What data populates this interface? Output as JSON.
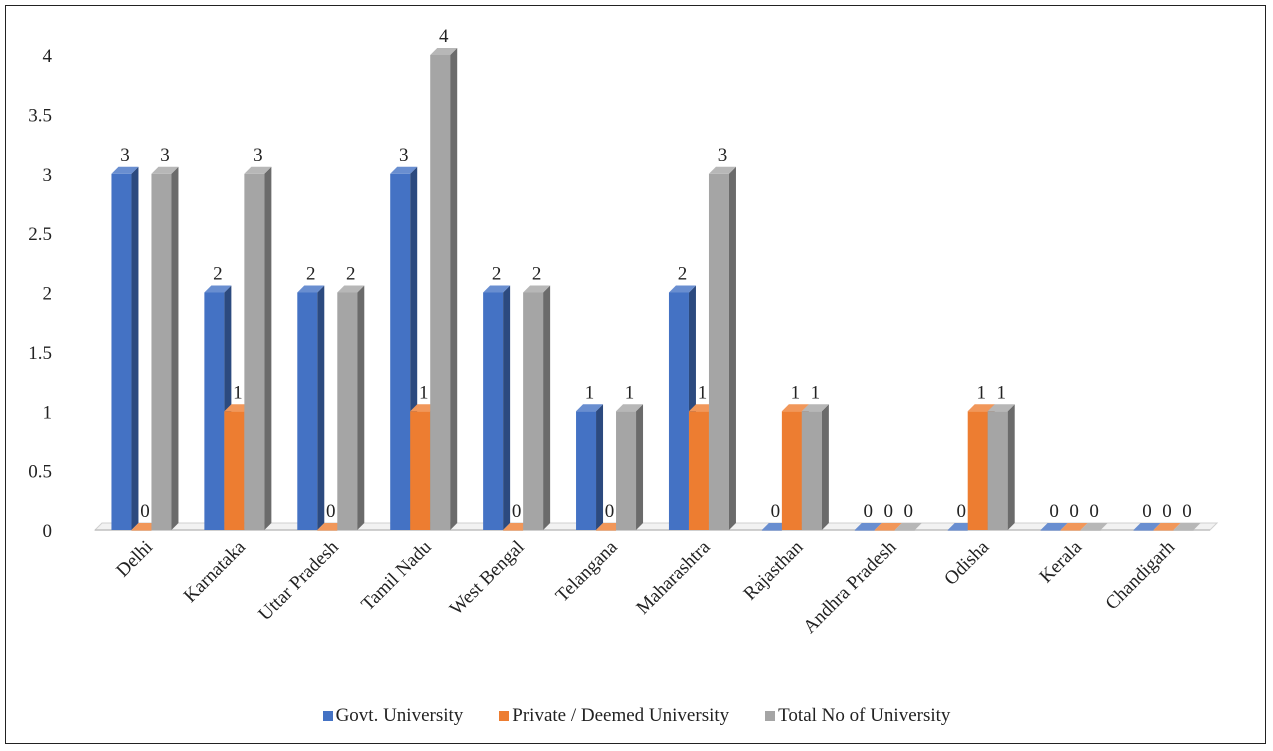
{
  "chart_data": {
    "type": "bar",
    "title": "",
    "xlabel": "",
    "ylabel": "",
    "ylim": [
      0,
      4
    ],
    "yticks": [
      "0",
      "0.5",
      "1",
      "1.5",
      "2",
      "2.5",
      "3",
      "3.5",
      "4"
    ],
    "grid": false,
    "legend_position": "bottom",
    "categories": [
      "Delhi",
      "Karnataka",
      "Uttar Pradesh",
      "Tamil Nadu",
      "West Bengal",
      "Telangana",
      "Maharashtra",
      "Rajasthan",
      "Andhra Pradesh",
      "Odisha",
      "Kerala",
      "Chandigarh"
    ],
    "series": [
      {
        "name": "Govt. University",
        "color": "#4472C4",
        "values": [
          3,
          2,
          2,
          3,
          2,
          1,
          2,
          0,
          0,
          0,
          0,
          0
        ]
      },
      {
        "name": "Private / Deemed University",
        "color": "#ED7D31",
        "values": [
          0,
          1,
          0,
          1,
          0,
          0,
          1,
          1,
          0,
          1,
          0,
          0
        ]
      },
      {
        "name": "Total No of University",
        "color": "#A5A5A5",
        "values": [
          3,
          3,
          2,
          4,
          2,
          1,
          3,
          1,
          0,
          1,
          0,
          0
        ]
      }
    ],
    "data_labels": [
      [
        "3",
        "0",
        "3"
      ],
      [
        "2",
        "1",
        "3"
      ],
      [
        "2",
        "0",
        "2"
      ],
      [
        "3",
        "1",
        "4"
      ],
      [
        "2",
        "0",
        "2"
      ],
      [
        "1",
        "0",
        "1"
      ],
      [
        "2",
        "1",
        "3"
      ],
      [
        "0",
        "1",
        "1"
      ],
      [
        "0",
        "0",
        "0"
      ],
      [
        "0",
        "1",
        "1"
      ],
      [
        "0",
        "0",
        "0"
      ],
      [
        "0",
        "0",
        "0"
      ]
    ]
  }
}
